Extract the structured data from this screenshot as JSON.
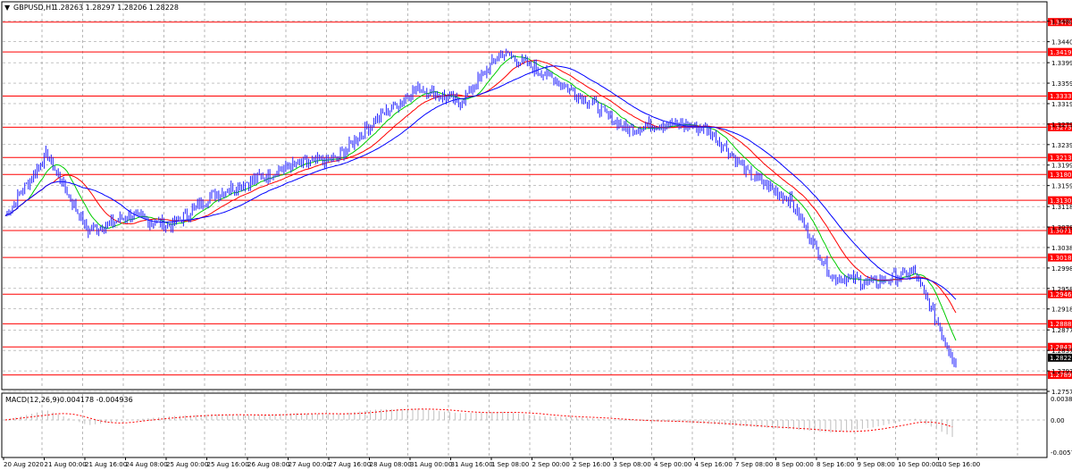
{
  "window": {
    "symbol_title": "GBPUSD,H1",
    "ohlc": "1.28263 1.28297 1.28206 1.28228",
    "dropdown_icon": "triangle-down-icon"
  },
  "macd": {
    "title": "MACD(12,26,9)",
    "values": "-0.004178 -0.004936",
    "top_label": "0.00384",
    "zero_label": "0.00",
    "bottom_label": "-0.00575"
  },
  "colors": {
    "candle": "#2020ff",
    "level_line": "#ff0000",
    "ma_green": "#00cc00",
    "ma_red": "#ff0000",
    "ma_blue": "#0000ff",
    "macd_hist": "#bfbfbf",
    "macd_signal": "#ff0000",
    "grid": "#888888",
    "current_price_bg": "#000000"
  },
  "price_axis": {
    "ticks": [
      "1.34800",
      "1.34400",
      "1.33990",
      "1.33590",
      "1.33190",
      "1.32790",
      "1.32390",
      "1.31990",
      "1.31590",
      "1.31180",
      "1.30780",
      "1.30380",
      "1.29980",
      "1.29580",
      "1.29180",
      "1.28770",
      "1.28370",
      "1.27970",
      "1.27570"
    ]
  },
  "levels": [
    "1.34783",
    "1.34199",
    "1.33339",
    "1.32730",
    "1.32139",
    "1.31807",
    "1.31302",
    "1.30711",
    "1.30185",
    "1.29468",
    "1.28889",
    "1.28439",
    "1.27891"
  ],
  "current_price": "1.28228",
  "time_axis": [
    "20 Aug 2020",
    "21 Aug 00:00",
    "21 Aug 16:00",
    "24 Aug 08:00",
    "25 Aug 00:00",
    "25 Aug 16:00",
    "26 Aug 08:00",
    "27 Aug 00:00",
    "27 Aug 16:00",
    "28 Aug 08:00",
    "31 Aug 00:00",
    "31 Aug 16:00",
    "1 Sep 08:00",
    "2 Sep 00:00",
    "2 Sep 16:00",
    "3 Sep 08:00",
    "4 Sep 00:00",
    "4 Sep 16:00",
    "7 Sep 08:00",
    "8 Sep 00:00",
    "8 Sep 16:00",
    "9 Sep 08:00",
    "10 Sep 00:00",
    "10 Sep 16:00"
  ],
  "chart_data": {
    "type": "line",
    "description_series": "approximate H1 close path",
    "x": [
      "20 Aug 2020",
      "21 Aug 00:00",
      "21 Aug 16:00",
      "24 Aug 08:00",
      "25 Aug 00:00",
      "25 Aug 16:00",
      "26 Aug 08:00",
      "27 Aug 00:00",
      "27 Aug 16:00",
      "28 Aug 08:00",
      "31 Aug 00:00",
      "31 Aug 16:00",
      "1 Sep 08:00",
      "2 Sep 00:00",
      "2 Sep 16:00",
      "3 Sep 08:00",
      "4 Sep 00:00",
      "4 Sep 16:00",
      "7 Sep 08:00",
      "8 Sep 00:00",
      "8 Sep 16:00",
      "9 Sep 08:00",
      "10 Sep 00:00",
      "10 Sep 16:00"
    ],
    "series": [
      {
        "name": "GBPUSD,H1",
        "values": [
          1.31,
          1.322,
          1.307,
          1.31,
          1.308,
          1.314,
          1.317,
          1.32,
          1.321,
          1.329,
          1.335,
          1.332,
          1.342,
          1.338,
          1.333,
          1.327,
          1.328,
          1.327,
          1.318,
          1.313,
          1.298,
          1.297,
          1.299,
          1.281
        ]
      }
    ],
    "macd_histogram": [
      0.0,
      0.0026,
      -0.0014,
      0.0,
      0.001,
      0.0015,
      0.0012,
      0.0018,
      0.0015,
      0.0028,
      0.003,
      0.0018,
      0.0022,
      0.001,
      0.0006,
      -0.0002,
      -0.0004,
      -0.001,
      -0.0018,
      -0.0024,
      -0.0034,
      -0.002,
      0.0004,
      -0.005
    ],
    "ylim": [
      1.2757,
      1.349
    ]
  }
}
